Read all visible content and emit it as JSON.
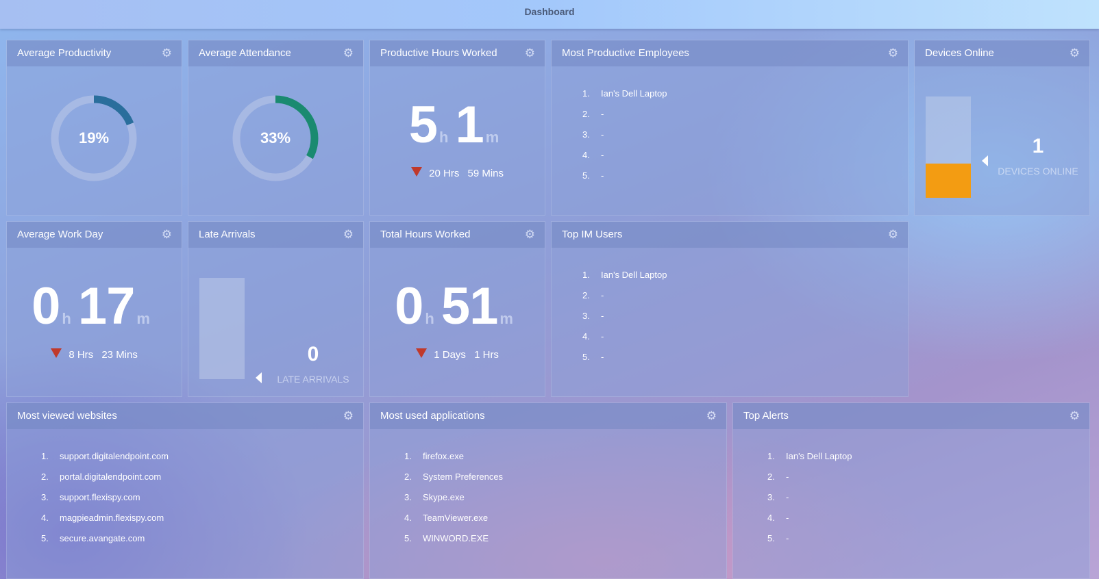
{
  "header": {
    "title": "Dashboard"
  },
  "icons": {
    "gear": "gear-icon",
    "delta": "down-triangle-icon"
  },
  "colors": {
    "attendance_arc": "#1a8a70",
    "productivity_arc": "#2a6e9c",
    "device_fill": "#f39c12",
    "down": "#c0392b"
  },
  "avg_productivity": {
    "title": "Average Productivity",
    "label": "19%",
    "percent": 19
  },
  "avg_attendance": {
    "title": "Average Attendance",
    "label": "33%",
    "percent": 33
  },
  "productive_hours": {
    "title": "Productive Hours Worked",
    "hours": "5",
    "minutes": "1",
    "h": "h",
    "m": "m",
    "delta_hrs": "20",
    "hrs_label": "Hrs",
    "delta_mins": "59",
    "mins_label": "Mins"
  },
  "most_productive": {
    "title": "Most Productive Employees",
    "items": [
      {
        "n": "1.",
        "name": "Ian's Dell Laptop"
      },
      {
        "n": "2.",
        "name": "-"
      },
      {
        "n": "3.",
        "name": "-"
      },
      {
        "n": "4.",
        "name": "-"
      },
      {
        "n": "5.",
        "name": "-"
      }
    ]
  },
  "devices_online": {
    "title": "Devices Online",
    "value": "1",
    "label": "DEVICES ONLINE",
    "fill_fraction": 0.34
  },
  "avg_work_day": {
    "title": "Average Work Day",
    "hours": "0",
    "minutes": "17",
    "h": "h",
    "m": "m",
    "delta_a": "8",
    "label_a": "Hrs",
    "delta_b": "23",
    "label_b": "Mins"
  },
  "late_arrivals": {
    "title": "Late Arrivals",
    "value": "0",
    "label": "LATE ARRIVALS",
    "fill_fraction": 0
  },
  "total_hours": {
    "title": "Total Hours Worked",
    "hours": "0",
    "minutes": "51",
    "h": "h",
    "m": "m",
    "delta_a": "1",
    "label_a": "Days",
    "delta_b": "1",
    "label_b": "Hrs"
  },
  "top_im": {
    "title": "Top IM Users",
    "items": [
      {
        "n": "1.",
        "name": "Ian's Dell Laptop"
      },
      {
        "n": "2.",
        "name": "-"
      },
      {
        "n": "3.",
        "name": "-"
      },
      {
        "n": "4.",
        "name": "-"
      },
      {
        "n": "5.",
        "name": "-"
      }
    ]
  },
  "most_viewed": {
    "title": "Most viewed websites",
    "items": [
      {
        "n": "1.",
        "name": "support.digitalendpoint.com"
      },
      {
        "n": "2.",
        "name": "portal.digitalendpoint.com"
      },
      {
        "n": "3.",
        "name": "support.flexispy.com"
      },
      {
        "n": "4.",
        "name": "magpieadmin.flexispy.com"
      },
      {
        "n": "5.",
        "name": "secure.avangate.com"
      }
    ]
  },
  "most_used_apps": {
    "title": "Most used applications",
    "items": [
      {
        "n": "1.",
        "name": "firefox.exe"
      },
      {
        "n": "2.",
        "name": "System Preferences"
      },
      {
        "n": "3.",
        "name": "Skype.exe"
      },
      {
        "n": "4.",
        "name": "TeamViewer.exe"
      },
      {
        "n": "5.",
        "name": "WINWORD.EXE"
      }
    ]
  },
  "top_alerts": {
    "title": "Top Alerts",
    "items": [
      {
        "n": "1.",
        "name": "Ian's Dell Laptop"
      },
      {
        "n": "2.",
        "name": "-"
      },
      {
        "n": "3.",
        "name": "-"
      },
      {
        "n": "4.",
        "name": "-"
      },
      {
        "n": "5.",
        "name": "-"
      }
    ]
  }
}
